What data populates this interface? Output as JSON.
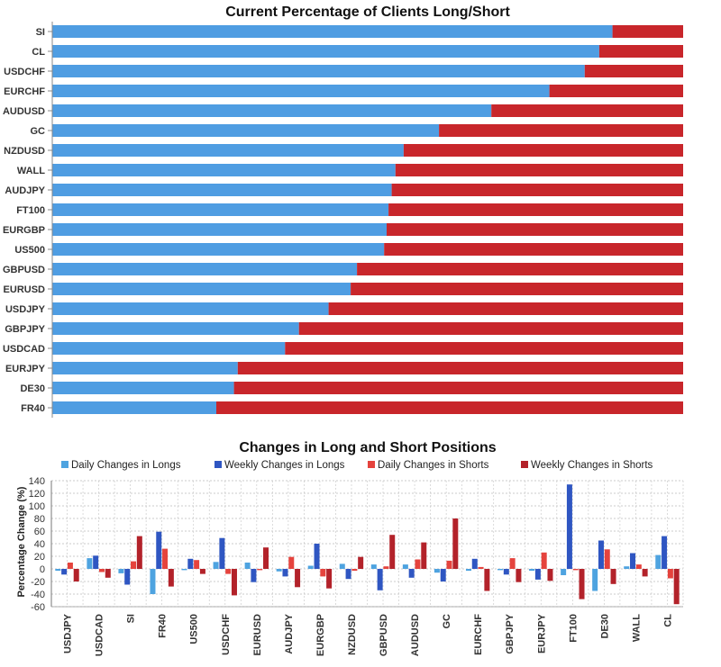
{
  "chart_data": [
    {
      "type": "bar",
      "orientation": "horizontal",
      "stacked": true,
      "title": "Current Percentage of Clients Long/Short",
      "categories": [
        "SI",
        "CL",
        "USDCHF",
        "EURCHF",
        "AUDUSD",
        "GC",
        "NZDUSD",
        "WALL",
        "AUDJPY",
        "FT100",
        "EURGBP",
        "US500",
        "GBPUSD",
        "EURUSD",
        "USDJPY",
        "GBPJPY",
        "USDCAD",
        "EURJPY",
        "DE30",
        "FR40"
      ],
      "series": [
        {
          "values": [
            88.8,
            86.7,
            84.4,
            78.8,
            69.6,
            61.3,
            55.7,
            54.4,
            53.8,
            53.3,
            53.0,
            52.6,
            48.3,
            47.3,
            43.8,
            39.1,
            36.9,
            29.4,
            28.8,
            26.0
          ]
        },
        {
          "values": [
            11.2,
            13.3,
            15.6,
            21.2,
            30.4,
            38.7,
            44.3,
            45.6,
            46.2,
            46.7,
            47.0,
            47.4,
            51.7,
            52.7,
            56.2,
            60.9,
            63.1,
            70.6,
            71.2,
            74.0
          ]
        }
      ],
      "colors": [
        "#4f9de2",
        "#c8262b"
      ],
      "xlim": [
        0,
        100
      ],
      "grid": false
    },
    {
      "type": "bar",
      "title": "Changes in Long and Short Positions",
      "ylabel": "Percentage Change (%)",
      "ylim": [
        -60,
        140
      ],
      "yticks": [
        -60,
        -40,
        -20,
        0,
        20,
        40,
        60,
        80,
        100,
        120,
        140
      ],
      "grid": true,
      "legend_position": "top",
      "categories": [
        "USDJPY",
        "USDCAD",
        "SI",
        "FR40",
        "US500",
        "USDCHF",
        "EURUSD",
        "AUDJPY",
        "EURGBP",
        "NZDUSD",
        "GBPUSD",
        "AUDUSD",
        "GC",
        "EURCHF",
        "GBPJPY",
        "EURJPY",
        "FT100",
        "DE30",
        "WALL",
        "CL"
      ],
      "series": [
        {
          "name": "Daily Changes in Longs",
          "color": "#4ea3e0",
          "values": [
            -3,
            17,
            -7,
            -40,
            -2,
            11,
            10,
            -4,
            5,
            8,
            7,
            7,
            -6,
            -3,
            -2,
            -3,
            -10,
            -35,
            4,
            22
          ]
        },
        {
          "name": "Weekly Changes in Longs",
          "color": "#2f56c2",
          "values": [
            -9,
            21,
            -25,
            59,
            16,
            49,
            -21,
            -12,
            40,
            -16,
            -34,
            -14,
            -20,
            16,
            -9,
            -17,
            134,
            45,
            25,
            52
          ]
        },
        {
          "name": "Daily Changes in Shorts",
          "color": "#e5433d",
          "values": [
            10,
            -5,
            12,
            32,
            14,
            -8,
            -2,
            19,
            -12,
            -3,
            4,
            15,
            13,
            3,
            17,
            26,
            -2,
            31,
            7,
            -15
          ]
        },
        {
          "name": "Weekly Changes in Shorts",
          "color": "#b3222a",
          "values": [
            -20,
            -14,
            52,
            -28,
            -8,
            -42,
            34,
            -29,
            -31,
            19,
            54,
            42,
            80,
            -35,
            -21,
            -19,
            -48,
            -24,
            -12,
            -56
          ]
        }
      ]
    }
  ]
}
